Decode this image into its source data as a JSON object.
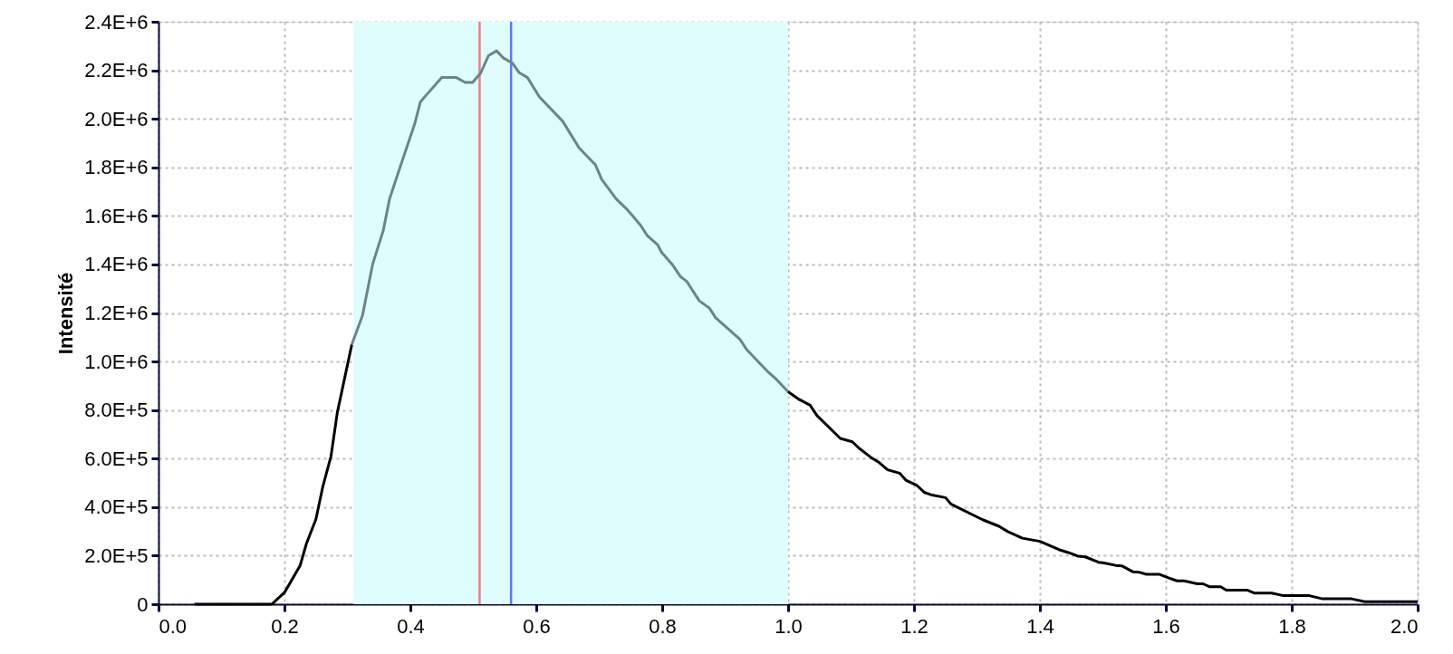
{
  "chart_data": {
    "type": "line",
    "ylabel": "Intensité",
    "xlim": [
      0,
      2
    ],
    "ylim": [
      0,
      2400000
    ],
    "xticks": [
      {
        "value": 0,
        "label": "0.0"
      },
      {
        "value": 0.2,
        "label": "0.2"
      },
      {
        "value": 0.4,
        "label": "0.4"
      },
      {
        "value": 0.6,
        "label": "0.6"
      },
      {
        "value": 0.8,
        "label": "0.8"
      },
      {
        "value": 1,
        "label": "1.0"
      },
      {
        "value": 1.2,
        "label": "1.2"
      },
      {
        "value": 1.4,
        "label": "1.4"
      },
      {
        "value": 1.6,
        "label": "1.6"
      },
      {
        "value": 1.8,
        "label": "1.8"
      },
      {
        "value": 2,
        "label": "2.0"
      }
    ],
    "yticks": [
      0,
      {
        "value": 200000,
        "label": "2.0E+5"
      },
      {
        "value": 400000,
        "label": "4.0E+5"
      },
      {
        "value": 600000,
        "label": "6.0E+5"
      },
      {
        "value": 800000,
        "label": "8.0E+5"
      },
      {
        "value": 1000000,
        "label": "1.0E+6"
      },
      {
        "value": 1200000,
        "label": "1.2E+6"
      },
      {
        "value": 1400000,
        "label": "1.4E+6"
      },
      {
        "value": 1600000,
        "label": "1.6E+6"
      },
      {
        "value": 1800000,
        "label": "1.8E+6"
      },
      {
        "value": 2000000,
        "label": "2.0E+6"
      },
      {
        "value": 2200000,
        "label": "2.2E+6"
      },
      {
        "value": 2400000,
        "label": "2.4E+6"
      }
    ],
    "grid": true,
    "marker": "none",
    "line_style": "solid",
    "bands": [
      {
        "axis": "x",
        "from": 0.31,
        "to": 1.0,
        "color": "#e0fdfd"
      }
    ],
    "ref_lines": [
      {
        "axis": "x",
        "value": 0.51,
        "color": "#e88080"
      },
      {
        "axis": "x",
        "value": 0.56,
        "color": "#5a7af0"
      }
    ],
    "series": [
      {
        "color": "#000000",
        "x": [
          0.057,
          0.1,
          0.15,
          0.18,
          0.2,
          0.225,
          0.235,
          0.25,
          0.261,
          0.274,
          0.284,
          0.307
        ],
        "values": [
          0,
          0,
          0,
          0,
          48000,
          160000,
          250000,
          350000,
          485000,
          610000,
          790000,
          1070000
        ]
      },
      {
        "color": "#6b8585",
        "x": [
          0.307,
          0.324,
          0.34,
          0.357,
          0.367,
          0.381,
          0.407,
          0.416,
          0.426,
          0.45,
          0.473,
          0.487,
          0.499,
          0.512,
          0.524,
          0.537,
          0.548,
          0.562,
          0.573,
          0.586,
          0.605,
          0.642,
          0.668,
          0.694,
          0.704,
          0.727,
          0.743,
          0.753,
          0.766,
          0.776,
          0.793,
          0.799,
          0.816,
          0.829,
          0.839,
          0.859,
          0.875,
          0.885,
          0.924,
          0.934,
          0.967,
          0.98,
          1.0
        ],
        "values": [
          1070000,
          1190000,
          1400000,
          1540000,
          1670000,
          1780000,
          1980000,
          2070000,
          2100000,
          2170000,
          2170000,
          2150000,
          2150000,
          2190000,
          2260000,
          2280000,
          2250000,
          2230000,
          2190000,
          2170000,
          2090000,
          1990000,
          1880000,
          1810000,
          1750000,
          1670000,
          1630000,
          1600000,
          1560000,
          1520000,
          1480000,
          1450000,
          1400000,
          1350000,
          1330000,
          1250000,
          1220000,
          1180000,
          1090000,
          1050000,
          960000,
          930000,
          875000
        ]
      },
      {
        "color": "#000000",
        "x": [
          1.0,
          1.016,
          1.035,
          1.046,
          1.083,
          1.102,
          1.114,
          1.131,
          1.145,
          1.158,
          1.177,
          1.187,
          1.204,
          1.217,
          1.227,
          1.25,
          1.259,
          1.309,
          1.335,
          1.349,
          1.372,
          1.4,
          1.43,
          1.446,
          1.46,
          1.472,
          1.493,
          1.502,
          1.52,
          1.53,
          1.548,
          1.557,
          1.569,
          1.59,
          1.604,
          1.618,
          1.629,
          1.65,
          1.659,
          1.669,
          1.687,
          1.696,
          1.729,
          1.74,
          1.768,
          1.787,
          1.828,
          1.849,
          1.895,
          1.916,
          2.0
        ],
        "values": [
          875000,
          846000,
          820000,
          777000,
          683000,
          669000,
          640000,
          606000,
          583000,
          554000,
          540000,
          511000,
          490000,
          460000,
          451000,
          439000,
          412000,
          348000,
          321000,
          299000,
          272000,
          259000,
          225000,
          212000,
          198000,
          195000,
          173000,
          170000,
          160000,
          158000,
          133000,
          132000,
          123000,
          123000,
          109000,
          96000,
          96000,
          84000,
          84000,
          72000,
          72000,
          58000,
          58000,
          46000,
          46000,
          35000,
          35000,
          22000,
          22000,
          10000,
          10000
        ]
      }
    ]
  }
}
